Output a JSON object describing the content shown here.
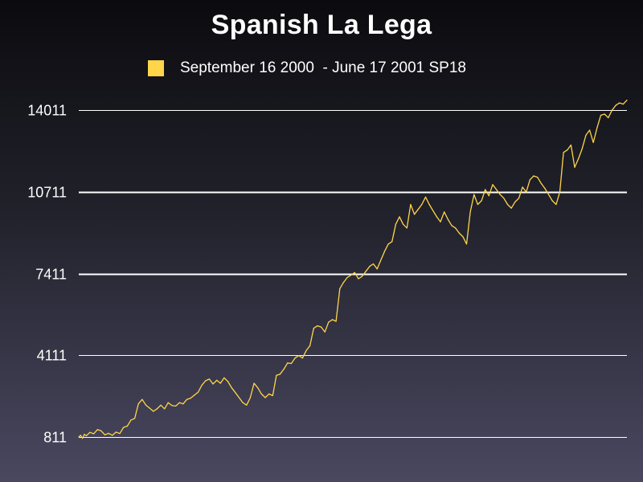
{
  "chart_data": {
    "type": "line",
    "title": "Spanish La Lega",
    "series": [
      {
        "name": "September 16 2000  - June 17 2001 SP18",
        "color": "#ffd54a",
        "points": [
          [
            0.0,
            811
          ],
          [
            0.5,
            880
          ],
          [
            1.0,
            760
          ],
          [
            1.5,
            920
          ],
          [
            2.0,
            860
          ],
          [
            3.0,
            1000
          ],
          [
            4.0,
            940
          ],
          [
            5.0,
            1110
          ],
          [
            6.0,
            1060
          ],
          [
            7.0,
            900
          ],
          [
            8.0,
            960
          ],
          [
            9.0,
            880
          ],
          [
            10.0,
            1010
          ],
          [
            11.0,
            950
          ],
          [
            12.0,
            1200
          ],
          [
            13.0,
            1250
          ],
          [
            14.0,
            1500
          ],
          [
            15.0,
            1560
          ],
          [
            16.0,
            2150
          ],
          [
            17.0,
            2330
          ],
          [
            18.0,
            2100
          ],
          [
            19.0,
            1980
          ],
          [
            20.0,
            1850
          ],
          [
            21.0,
            1950
          ],
          [
            22.0,
            2100
          ],
          [
            23.0,
            1950
          ],
          [
            24.0,
            2200
          ],
          [
            25.0,
            2080
          ],
          [
            26.0,
            2060
          ],
          [
            27.0,
            2200
          ],
          [
            28.0,
            2150
          ],
          [
            29.0,
            2330
          ],
          [
            30.0,
            2380
          ],
          [
            31.0,
            2500
          ],
          [
            32.0,
            2620
          ],
          [
            33.0,
            2900
          ],
          [
            34.0,
            3080
          ],
          [
            35.0,
            3150
          ],
          [
            36.0,
            2950
          ],
          [
            37.0,
            3100
          ],
          [
            38.0,
            2980
          ],
          [
            39.0,
            3200
          ],
          [
            40.0,
            3050
          ],
          [
            41.0,
            2800
          ],
          [
            42.0,
            2600
          ],
          [
            43.0,
            2400
          ],
          [
            44.0,
            2200
          ],
          [
            45.0,
            2100
          ],
          [
            46.0,
            2400
          ],
          [
            47.0,
            2980
          ],
          [
            48.0,
            2800
          ],
          [
            49.0,
            2550
          ],
          [
            50.0,
            2400
          ],
          [
            51.0,
            2550
          ],
          [
            52.0,
            2480
          ],
          [
            53.0,
            3300
          ],
          [
            54.0,
            3350
          ],
          [
            55.0,
            3550
          ],
          [
            56.0,
            3800
          ],
          [
            57.0,
            3780
          ],
          [
            58.0,
            4000
          ],
          [
            59.0,
            4100
          ],
          [
            60.0,
            4000
          ],
          [
            61.0,
            4300
          ],
          [
            62.0,
            4500
          ],
          [
            63.0,
            5200
          ],
          [
            64.0,
            5300
          ],
          [
            65.0,
            5250
          ],
          [
            66.0,
            5050
          ],
          [
            67.0,
            5450
          ],
          [
            68.0,
            5550
          ],
          [
            69.0,
            5480
          ],
          [
            70.0,
            6800
          ],
          [
            71.0,
            7050
          ],
          [
            72.0,
            7250
          ],
          [
            73.0,
            7350
          ],
          [
            74.0,
            7450
          ],
          [
            75.0,
            7200
          ],
          [
            76.0,
            7300
          ],
          [
            77.0,
            7500
          ],
          [
            78.0,
            7700
          ],
          [
            79.0,
            7800
          ],
          [
            80.0,
            7600
          ],
          [
            81.0,
            7950
          ],
          [
            82.0,
            8300
          ],
          [
            83.0,
            8600
          ],
          [
            84.0,
            8700
          ],
          [
            85.0,
            9400
          ],
          [
            86.0,
            9700
          ],
          [
            87.0,
            9400
          ],
          [
            88.0,
            9250
          ],
          [
            89.0,
            10200
          ],
          [
            90.0,
            9800
          ],
          [
            91.0,
            10000
          ],
          [
            92.0,
            10200
          ],
          [
            93.0,
            10500
          ],
          [
            94.0,
            10200
          ],
          [
            95.0,
            9950
          ],
          [
            96.0,
            9700
          ],
          [
            97.0,
            9500
          ],
          [
            98.0,
            9900
          ],
          [
            99.0,
            9600
          ],
          [
            100.0,
            9350
          ],
          [
            101.0,
            9250
          ],
          [
            102.0,
            9050
          ],
          [
            103.0,
            8900
          ],
          [
            104.0,
            8600
          ],
          [
            105.0,
            9900
          ],
          [
            106.0,
            10600
          ],
          [
            107.0,
            10200
          ],
          [
            108.0,
            10350
          ],
          [
            109.0,
            10800
          ],
          [
            110.0,
            10550
          ],
          [
            111.0,
            11000
          ],
          [
            112.0,
            10800
          ],
          [
            113.0,
            10600
          ],
          [
            114.0,
            10450
          ],
          [
            115.0,
            10200
          ],
          [
            116.0,
            10050
          ],
          [
            117.0,
            10300
          ],
          [
            118.0,
            10450
          ],
          [
            119.0,
            10900
          ],
          [
            120.0,
            10700
          ],
          [
            121.0,
            11200
          ],
          [
            122.0,
            11350
          ],
          [
            123.0,
            11300
          ],
          [
            124.0,
            11050
          ],
          [
            125.0,
            10850
          ],
          [
            126.0,
            10600
          ],
          [
            127.0,
            10350
          ],
          [
            128.0,
            10200
          ],
          [
            129.0,
            10700
          ],
          [
            130.0,
            12300
          ],
          [
            131.0,
            12400
          ],
          [
            132.0,
            12600
          ],
          [
            133.0,
            11700
          ],
          [
            134.0,
            12050
          ],
          [
            135.0,
            12450
          ],
          [
            136.0,
            13000
          ],
          [
            137.0,
            13200
          ],
          [
            138.0,
            12700
          ],
          [
            139.0,
            13300
          ],
          [
            140.0,
            13800
          ],
          [
            141.0,
            13850
          ],
          [
            142.0,
            13700
          ],
          [
            143.0,
            14000
          ],
          [
            144.0,
            14200
          ],
          [
            145.0,
            14300
          ],
          [
            146.0,
            14250
          ],
          [
            147.0,
            14411
          ]
        ]
      }
    ],
    "xlim": [
      0,
      147
    ],
    "ylim": [
      811,
      14011
    ],
    "yticks": [
      811,
      4111,
      7411,
      10711,
      14011
    ],
    "ytick_labels": [
      "811",
      "4111",
      "7411",
      "10711",
      "14011"
    ],
    "grid": true,
    "legend_position": "top-center",
    "background": [
      "#0b0b0f",
      "#4a4860"
    ],
    "grid_color": "#ffffff",
    "text_color": "#ffffff"
  }
}
